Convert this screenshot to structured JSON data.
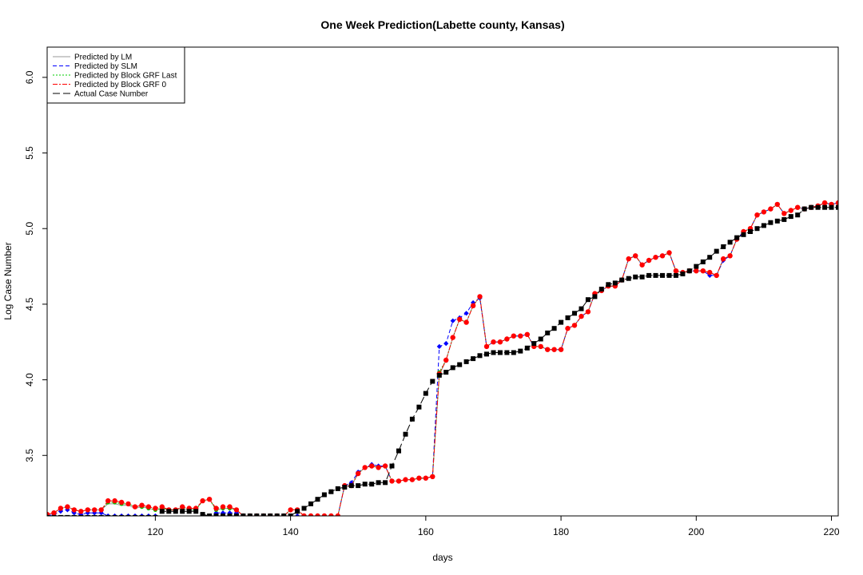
{
  "chart_data": {
    "type": "line",
    "title": "One Week Prediction(Labette county, Kansas)",
    "xlabel": "days",
    "ylabel": "Log Case Number",
    "xlim": [
      104,
      221
    ],
    "ylim": [
      3.1,
      6.2
    ],
    "x_ticks": [
      120,
      140,
      160,
      180,
      200,
      220
    ],
    "y_ticks": [
      3.5,
      4.0,
      4.5,
      5.0,
      5.5,
      6.0
    ],
    "x_tick_labels": [
      "120",
      "140",
      "160",
      "180",
      "200",
      "220"
    ],
    "y_tick_labels": [
      "3.5",
      "4.0",
      "4.5",
      "5.0",
      "5.5",
      "6.0"
    ],
    "grid": false,
    "legend_position": "top-left",
    "x": [
      104,
      105,
      106,
      107,
      108,
      109,
      110,
      111,
      112,
      113,
      114,
      115,
      116,
      117,
      118,
      119,
      120,
      121,
      122,
      123,
      124,
      125,
      126,
      127,
      128,
      129,
      130,
      131,
      132,
      133,
      134,
      135,
      136,
      137,
      138,
      139,
      140,
      141,
      142,
      143,
      144,
      145,
      146,
      147,
      148,
      149,
      150,
      151,
      152,
      153,
      154,
      155,
      156,
      157,
      158,
      159,
      160,
      161,
      162,
      163,
      164,
      165,
      166,
      167,
      168,
      169,
      170,
      171,
      172,
      173,
      174,
      175,
      176,
      177,
      178,
      179,
      180,
      181,
      182,
      183,
      184,
      185,
      186,
      187,
      188,
      189,
      190,
      191,
      192,
      193,
      194,
      195,
      196,
      197,
      198,
      199,
      200,
      201,
      202,
      203,
      204,
      205,
      206,
      207,
      208,
      209,
      210,
      211,
      212,
      213,
      214,
      215,
      216,
      217,
      218,
      219,
      220,
      221
    ],
    "series": [
      {
        "name": "Predicted by LM",
        "color": "#999999",
        "dash": "solid",
        "values": [
          3.11,
          3.12,
          3.15,
          3.16,
          3.14,
          3.13,
          3.14,
          3.14,
          3.14,
          3.18,
          3.18,
          3.17,
          3.17,
          3.15,
          3.16,
          3.15,
          3.14,
          3.15,
          3.14,
          3.14,
          3.15,
          3.14,
          3.14,
          3.2,
          3.21,
          3.14,
          3.15,
          3.15,
          3.14,
          3.1,
          3.1,
          3.1,
          3.1,
          3.1,
          3.1,
          3.1,
          3.14,
          3.14,
          3.1,
          3.1,
          3.1,
          3.1,
          3.1,
          3.1,
          3.3,
          3.3,
          3.38,
          3.42,
          3.43,
          3.42,
          3.43,
          3.33,
          3.33,
          3.34,
          3.34,
          3.35,
          3.35,
          3.36,
          4.03,
          4.13,
          4.28,
          4.4,
          4.38,
          4.49,
          4.55,
          4.22,
          4.25,
          4.25,
          4.27,
          4.29,
          4.29,
          4.3,
          4.22,
          4.22,
          4.2,
          4.2,
          4.2,
          4.34,
          4.36,
          4.42,
          4.45,
          4.57,
          4.59,
          4.62,
          4.62,
          4.66,
          4.8,
          4.82,
          4.76,
          4.79,
          4.81,
          4.82,
          4.84,
          4.72,
          4.71,
          4.72,
          4.72,
          4.72,
          4.71,
          4.69,
          4.8,
          4.82,
          4.93,
          4.98,
          5.0,
          5.09,
          5.11,
          5.13,
          5.16,
          5.1,
          5.12,
          5.14,
          5.13,
          5.14,
          5.15,
          5.17,
          5.16,
          5.17
        ]
      },
      {
        "name": "Predicted by SLM",
        "color": "#0000ff",
        "dash": "dashed",
        "values": [
          3.1,
          3.11,
          3.13,
          3.14,
          3.12,
          3.11,
          3.12,
          3.12,
          3.12,
          3.1,
          3.1,
          3.1,
          3.1,
          3.1,
          3.1,
          3.1,
          3.1,
          3.07,
          3.07,
          3.07,
          3.07,
          3.06,
          3.06,
          3.05,
          3.05,
          3.12,
          3.12,
          3.12,
          3.12,
          3.1,
          3.1,
          3.1,
          3.1,
          3.1,
          3.1,
          3.1,
          3.1,
          3.1,
          3.1,
          3.1,
          3.1,
          3.1,
          3.1,
          3.1,
          3.3,
          3.32,
          3.39,
          3.42,
          3.44,
          3.43,
          3.43,
          3.33,
          3.33,
          3.34,
          3.34,
          3.35,
          3.35,
          3.36,
          4.22,
          4.24,
          4.39,
          4.41,
          4.44,
          4.51,
          4.54,
          4.22,
          4.25,
          4.25,
          4.27,
          4.29,
          4.29,
          4.3,
          4.22,
          4.22,
          4.2,
          4.2,
          4.2,
          4.34,
          4.36,
          4.42,
          4.45,
          4.57,
          4.59,
          4.62,
          4.62,
          4.66,
          4.8,
          4.82,
          4.76,
          4.79,
          4.81,
          4.82,
          4.84,
          4.72,
          4.71,
          4.72,
          4.72,
          4.72,
          4.69,
          4.69,
          4.79,
          4.82,
          4.93,
          4.98,
          5.0,
          5.09,
          5.11,
          5.13,
          5.16,
          5.1,
          5.12,
          5.14,
          5.13,
          5.14,
          5.15,
          5.17,
          5.16,
          5.17
        ]
      },
      {
        "name": "Predicted by Block GRF Last",
        "color": "#00cc00",
        "dash": "dotted",
        "values": [
          3.11,
          3.12,
          3.15,
          3.16,
          3.14,
          3.13,
          3.14,
          3.14,
          3.14,
          3.19,
          3.19,
          3.18,
          3.18,
          3.16,
          3.16,
          3.15,
          3.14,
          3.15,
          3.14,
          3.14,
          3.15,
          3.14,
          3.14,
          3.2,
          3.21,
          3.14,
          3.15,
          3.15,
          3.14,
          3.1,
          3.1,
          3.1,
          3.1,
          3.1,
          3.1,
          3.1,
          3.14,
          3.14,
          3.1,
          3.1,
          3.1,
          3.1,
          3.1,
          3.1,
          3.3,
          3.3,
          3.38,
          3.42,
          3.43,
          3.42,
          3.43,
          3.33,
          3.33,
          3.34,
          3.34,
          3.35,
          3.35,
          3.36,
          4.05,
          4.13,
          4.28,
          4.4,
          4.38,
          4.49,
          4.55,
          4.22,
          4.25,
          4.25,
          4.27,
          4.29,
          4.29,
          4.3,
          4.22,
          4.22,
          4.2,
          4.2,
          4.2,
          4.34,
          4.36,
          4.42,
          4.45,
          4.57,
          4.59,
          4.62,
          4.62,
          4.66,
          4.8,
          4.82,
          4.76,
          4.79,
          4.81,
          4.82,
          4.84,
          4.72,
          4.71,
          4.72,
          4.72,
          4.72,
          4.71,
          4.69,
          4.8,
          4.82,
          4.93,
          4.98,
          5.0,
          5.09,
          5.11,
          5.13,
          5.16,
          5.1,
          5.12,
          5.14,
          5.13,
          5.14,
          5.15,
          5.17,
          5.16,
          5.17
        ]
      },
      {
        "name": "Predicted by Block GRF 0",
        "color": "#ff0000",
        "dash": "dashdot",
        "values": [
          3.11,
          3.12,
          3.15,
          3.16,
          3.14,
          3.13,
          3.14,
          3.14,
          3.14,
          3.2,
          3.2,
          3.19,
          3.18,
          3.16,
          3.17,
          3.16,
          3.15,
          3.16,
          3.14,
          3.14,
          3.16,
          3.15,
          3.15,
          3.2,
          3.21,
          3.15,
          3.16,
          3.16,
          3.14,
          3.1,
          3.1,
          3.1,
          3.1,
          3.1,
          3.1,
          3.1,
          3.14,
          3.14,
          3.1,
          3.1,
          3.1,
          3.1,
          3.1,
          3.1,
          3.3,
          3.3,
          3.38,
          3.42,
          3.43,
          3.42,
          3.43,
          3.33,
          3.33,
          3.34,
          3.34,
          3.35,
          3.35,
          3.36,
          4.04,
          4.13,
          4.28,
          4.4,
          4.38,
          4.49,
          4.55,
          4.22,
          4.25,
          4.25,
          4.27,
          4.29,
          4.29,
          4.3,
          4.22,
          4.22,
          4.2,
          4.2,
          4.2,
          4.34,
          4.36,
          4.42,
          4.45,
          4.57,
          4.59,
          4.62,
          4.62,
          4.66,
          4.8,
          4.82,
          4.76,
          4.79,
          4.81,
          4.82,
          4.84,
          4.72,
          4.71,
          4.72,
          4.72,
          4.72,
          4.71,
          4.69,
          4.8,
          4.82,
          4.93,
          4.98,
          5.0,
          5.09,
          5.11,
          5.13,
          5.16,
          5.1,
          5.12,
          5.14,
          5.13,
          5.14,
          5.15,
          5.17,
          5.16,
          5.17
        ]
      },
      {
        "name": "Actual Case Number",
        "color": "#000000",
        "dash": "longdash",
        "values": [
          3.09,
          3.09,
          3.09,
          3.09,
          3.09,
          3.09,
          3.09,
          3.09,
          3.09,
          3.09,
          3.09,
          3.09,
          3.09,
          3.09,
          3.09,
          3.09,
          3.09,
          3.13,
          3.13,
          3.13,
          3.13,
          3.13,
          3.13,
          3.11,
          3.1,
          3.1,
          3.1,
          3.1,
          3.1,
          3.1,
          3.1,
          3.1,
          3.1,
          3.1,
          3.1,
          3.1,
          3.1,
          3.13,
          3.15,
          3.18,
          3.21,
          3.24,
          3.26,
          3.28,
          3.29,
          3.3,
          3.3,
          3.31,
          3.31,
          3.32,
          3.32,
          3.43,
          3.53,
          3.64,
          3.74,
          3.82,
          3.91,
          3.99,
          4.03,
          4.05,
          4.08,
          4.1,
          4.12,
          4.14,
          4.16,
          4.17,
          4.18,
          4.18,
          4.18,
          4.18,
          4.19,
          4.21,
          4.24,
          4.27,
          4.31,
          4.34,
          4.38,
          4.41,
          4.44,
          4.47,
          4.53,
          4.55,
          4.6,
          4.63,
          4.64,
          4.66,
          4.67,
          4.68,
          4.68,
          4.69,
          4.69,
          4.69,
          4.69,
          4.69,
          4.7,
          4.72,
          4.75,
          4.78,
          4.81,
          4.85,
          4.88,
          4.91,
          4.94,
          4.96,
          4.98,
          5.0,
          5.02,
          5.04,
          5.05,
          5.06,
          5.08,
          5.09,
          5.13,
          5.14,
          5.14,
          5.14,
          5.14,
          5.14
        ]
      }
    ]
  }
}
